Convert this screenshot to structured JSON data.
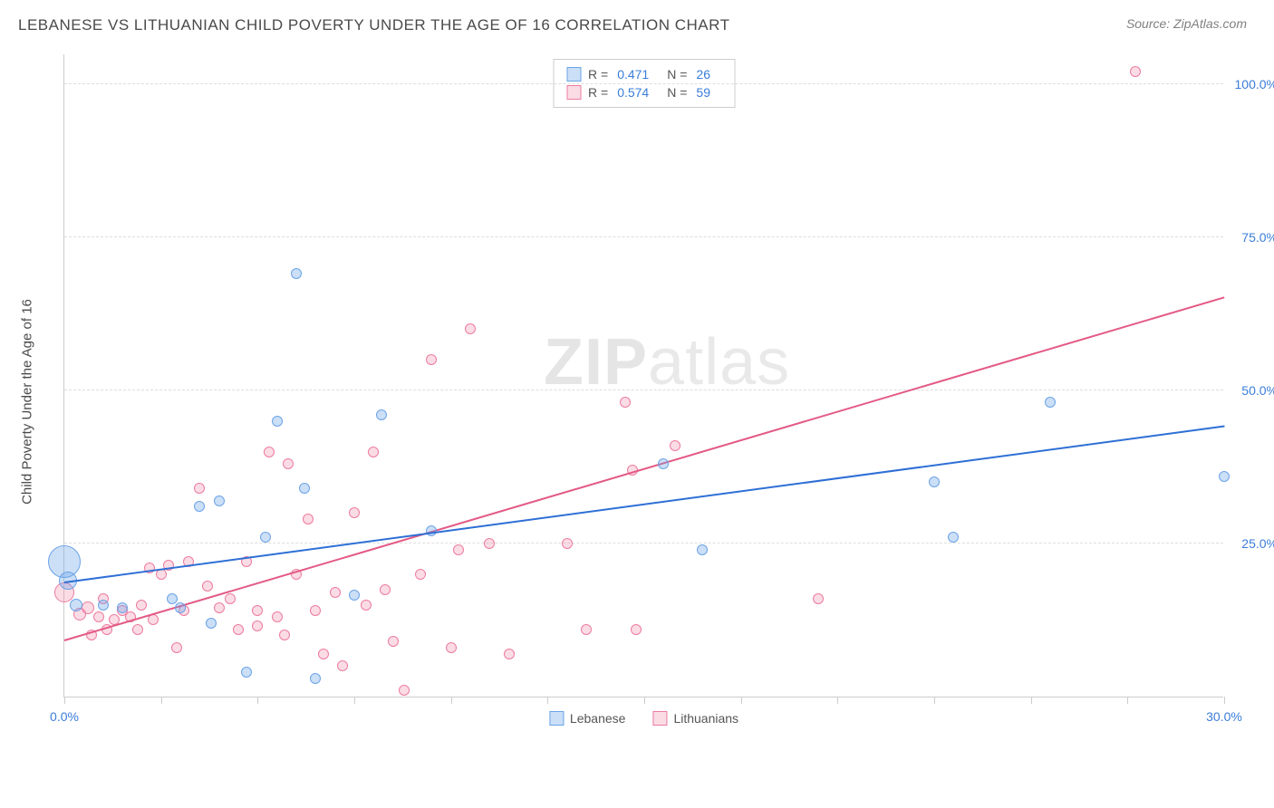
{
  "title": "LEBANESE VS LITHUANIAN CHILD POVERTY UNDER THE AGE OF 16 CORRELATION CHART",
  "source": "Source: ZipAtlas.com",
  "watermark_bold": "ZIP",
  "watermark_rest": "atlas",
  "y_axis_title": "Child Poverty Under the Age of 16",
  "chart": {
    "type": "scatter",
    "xlim": [
      0,
      30
    ],
    "ylim": [
      0,
      105
    ],
    "background_color": "#ffffff",
    "grid_color": "#dddddd",
    "grid_dash": true,
    "x_ticks": [
      0,
      2.5,
      5,
      7.5,
      10,
      12.5,
      15,
      17.5,
      20,
      22.5,
      25,
      27.5,
      30
    ],
    "x_tick_labels": {
      "0": "0.0%",
      "30": "30.0%"
    },
    "y_ticks": [
      25,
      50,
      75,
      100
    ],
    "y_tick_labels": {
      "25": "25.0%",
      "50": "50.0%",
      "75": "75.0%",
      "100": "100.0%"
    },
    "tick_label_color": "#3b7dd8",
    "tick_label_fontsize": 14,
    "axis_title_fontsize": 15,
    "axis_title_color": "#4a4a4a"
  },
  "series": {
    "lebanese": {
      "label": "Lebanese",
      "fill": "rgba(107,163,231,0.35)",
      "stroke": "#6ba3e7",
      "trend_color": "#2e6fd6",
      "trend_width": 2,
      "R": "0.471",
      "N": "26",
      "trend_start": {
        "x": 0,
        "y": 18.5
      },
      "trend_end": {
        "x": 30,
        "y": 44
      },
      "points": [
        {
          "x": 0.0,
          "y": 22,
          "r": 18
        },
        {
          "x": 0.1,
          "y": 19,
          "r": 10
        },
        {
          "x": 0.3,
          "y": 15,
          "r": 7
        },
        {
          "x": 1.0,
          "y": 15,
          "r": 6
        },
        {
          "x": 1.5,
          "y": 14.5,
          "r": 6
        },
        {
          "x": 2.8,
          "y": 16,
          "r": 6
        },
        {
          "x": 3.0,
          "y": 14.5,
          "r": 6
        },
        {
          "x": 3.5,
          "y": 31,
          "r": 6
        },
        {
          "x": 3.8,
          "y": 12,
          "r": 6
        },
        {
          "x": 4.0,
          "y": 32,
          "r": 6
        },
        {
          "x": 4.7,
          "y": 4,
          "r": 6
        },
        {
          "x": 5.2,
          "y": 26,
          "r": 6
        },
        {
          "x": 5.5,
          "y": 45,
          "r": 6
        },
        {
          "x": 6.0,
          "y": 69,
          "r": 6
        },
        {
          "x": 6.2,
          "y": 34,
          "r": 6
        },
        {
          "x": 6.5,
          "y": 3,
          "r": 6
        },
        {
          "x": 7.5,
          "y": 16.5,
          "r": 6
        },
        {
          "x": 8.2,
          "y": 46,
          "r": 6
        },
        {
          "x": 9.5,
          "y": 27,
          "r": 6
        },
        {
          "x": 15.5,
          "y": 38,
          "r": 6
        },
        {
          "x": 16.5,
          "y": 24,
          "r": 6
        },
        {
          "x": 22.5,
          "y": 35,
          "r": 6
        },
        {
          "x": 23.0,
          "y": 26,
          "r": 6
        },
        {
          "x": 25.5,
          "y": 48,
          "r": 6
        },
        {
          "x": 30.0,
          "y": 36,
          "r": 6
        }
      ]
    },
    "lithuanians": {
      "label": "Lithuanians",
      "fill": "rgba(242,140,170,0.30)",
      "stroke": "#ec7ba0",
      "trend_color": "#e35a85",
      "trend_width": 2,
      "R": "0.574",
      "N": "59",
      "trend_start": {
        "x": 0,
        "y": 9
      },
      "trend_end": {
        "x": 30,
        "y": 65
      },
      "points": [
        {
          "x": 0.0,
          "y": 17,
          "r": 11
        },
        {
          "x": 0.4,
          "y": 13.5,
          "r": 7
        },
        {
          "x": 0.6,
          "y": 14.5,
          "r": 7
        },
        {
          "x": 0.7,
          "y": 10,
          "r": 6
        },
        {
          "x": 0.9,
          "y": 13,
          "r": 6
        },
        {
          "x": 1.0,
          "y": 16,
          "r": 6
        },
        {
          "x": 1.1,
          "y": 11,
          "r": 6
        },
        {
          "x": 1.3,
          "y": 12.5,
          "r": 6
        },
        {
          "x": 1.5,
          "y": 14,
          "r": 6
        },
        {
          "x": 1.7,
          "y": 13,
          "r": 6
        },
        {
          "x": 1.9,
          "y": 11,
          "r": 6
        },
        {
          "x": 2.0,
          "y": 15,
          "r": 6
        },
        {
          "x": 2.2,
          "y": 21,
          "r": 6
        },
        {
          "x": 2.3,
          "y": 12.5,
          "r": 6
        },
        {
          "x": 2.5,
          "y": 20,
          "r": 6
        },
        {
          "x": 2.7,
          "y": 21.5,
          "r": 6
        },
        {
          "x": 2.9,
          "y": 8,
          "r": 6
        },
        {
          "x": 3.1,
          "y": 14,
          "r": 6
        },
        {
          "x": 3.2,
          "y": 22,
          "r": 6
        },
        {
          "x": 3.5,
          "y": 34,
          "r": 6
        },
        {
          "x": 3.7,
          "y": 18,
          "r": 6
        },
        {
          "x": 4.0,
          "y": 14.5,
          "r": 6
        },
        {
          "x": 4.3,
          "y": 16,
          "r": 6
        },
        {
          "x": 4.5,
          "y": 11,
          "r": 6
        },
        {
          "x": 4.7,
          "y": 22,
          "r": 6
        },
        {
          "x": 5.0,
          "y": 14,
          "r": 6
        },
        {
          "x": 5.0,
          "y": 11.5,
          "r": 6
        },
        {
          "x": 5.3,
          "y": 40,
          "r": 6
        },
        {
          "x": 5.5,
          "y": 13,
          "r": 6
        },
        {
          "x": 5.7,
          "y": 10,
          "r": 6
        },
        {
          "x": 5.8,
          "y": 38,
          "r": 6
        },
        {
          "x": 6.0,
          "y": 20,
          "r": 6
        },
        {
          "x": 6.3,
          "y": 29,
          "r": 6
        },
        {
          "x": 6.5,
          "y": 14,
          "r": 6
        },
        {
          "x": 6.7,
          "y": 7,
          "r": 6
        },
        {
          "x": 7.0,
          "y": 17,
          "r": 6
        },
        {
          "x": 7.2,
          "y": 5,
          "r": 6
        },
        {
          "x": 7.5,
          "y": 30,
          "r": 6
        },
        {
          "x": 7.8,
          "y": 15,
          "r": 6
        },
        {
          "x": 8.0,
          "y": 40,
          "r": 6
        },
        {
          "x": 8.3,
          "y": 17.5,
          "r": 6
        },
        {
          "x": 8.5,
          "y": 9,
          "r": 6
        },
        {
          "x": 8.8,
          "y": 1,
          "r": 6
        },
        {
          "x": 9.2,
          "y": 20,
          "r": 6
        },
        {
          "x": 9.5,
          "y": 55,
          "r": 6
        },
        {
          "x": 10.2,
          "y": 24,
          "r": 6
        },
        {
          "x": 10.0,
          "y": 8,
          "r": 6
        },
        {
          "x": 10.5,
          "y": 60,
          "r": 6
        },
        {
          "x": 11.0,
          "y": 25,
          "r": 6
        },
        {
          "x": 11.5,
          "y": 7,
          "r": 6
        },
        {
          "x": 13.0,
          "y": 25,
          "r": 6
        },
        {
          "x": 13.5,
          "y": 11,
          "r": 6
        },
        {
          "x": 14.5,
          "y": 48,
          "r": 6
        },
        {
          "x": 14.7,
          "y": 37,
          "r": 6
        },
        {
          "x": 14.8,
          "y": 11,
          "r": 6
        },
        {
          "x": 15.8,
          "y": 41,
          "r": 6
        },
        {
          "x": 19.5,
          "y": 16,
          "r": 6
        },
        {
          "x": 27.7,
          "y": 102,
          "r": 6
        }
      ]
    }
  },
  "legend_top": {
    "r_label": "R =",
    "n_label": "N ="
  },
  "legend_bottom": {
    "lebanese": "Lebanese",
    "lithuanians": "Lithuanians"
  }
}
